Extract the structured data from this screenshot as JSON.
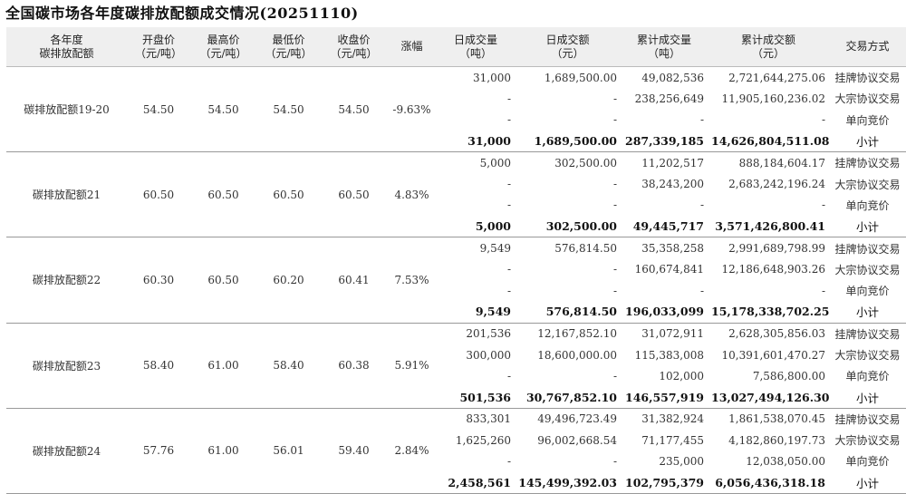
{
  "title": "全国碳市场各年度碳排放配额成交情况(20251110)",
  "headers": [
    "各年度\n碳排放配额",
    "开盘价\n（元/吨）",
    "最高价\n（元/吨）",
    "最低价\n（元/吨）",
    "收盘价\n（元/吨）",
    "涨幅",
    "日成交量\n（吨）",
    "日成交额\n（元）",
    "累计成交量\n（吨）",
    "累计成交额\n（元）",
    "交易方式"
  ],
  "groups": [
    {
      "name": "碳排放配额19-20",
      "open": "54.50",
      "high": "54.50",
      "low": "54.50",
      "close": "54.50",
      "change": "-9.63%",
      "rows": [
        {
          "vol": "31,000",
          "amt": "1,689,500.00",
          "cum_vol": "49,082,536",
          "cum_amt": "2,721,644,275.06",
          "type": "挂牌协议交易"
        },
        {
          "vol": "-",
          "amt": "-",
          "cum_vol": "238,256,649",
          "cum_amt": "11,905,160,236.02",
          "type": "大宗协议交易"
        },
        {
          "vol": "-",
          "amt": "-",
          "cum_vol": "-",
          "cum_amt": "-",
          "type": "单向竞价"
        },
        {
          "vol": "31,000",
          "amt": "1,689,500.00",
          "cum_vol": "287,339,185",
          "cum_amt": "14,626,804,511.08",
          "type": "小计"
        }
      ]
    },
    {
      "name": "碳排放配额21",
      "open": "60.50",
      "high": "60.50",
      "low": "60.50",
      "close": "60.50",
      "change": "4.83%",
      "rows": [
        {
          "vol": "5,000",
          "amt": "302,500.00",
          "cum_vol": "11,202,517",
          "cum_amt": "888,184,604.17",
          "type": "挂牌协议交易"
        },
        {
          "vol": "-",
          "amt": "-",
          "cum_vol": "38,243,200",
          "cum_amt": "2,683,242,196.24",
          "type": "大宗协议交易"
        },
        {
          "vol": "-",
          "amt": "-",
          "cum_vol": "-",
          "cum_amt": "-",
          "type": "单向竞价"
        },
        {
          "vol": "5,000",
          "amt": "302,500.00",
          "cum_vol": "49,445,717",
          "cum_amt": "3,571,426,800.41",
          "type": "小计"
        }
      ]
    },
    {
      "name": "碳排放配额22",
      "open": "60.30",
      "high": "60.50",
      "low": "60.20",
      "close": "60.41",
      "change": "7.53%",
      "rows": [
        {
          "vol": "9,549",
          "amt": "576,814.50",
          "cum_vol": "35,358,258",
          "cum_amt": "2,991,689,798.99",
          "type": "挂牌协议交易"
        },
        {
          "vol": "-",
          "amt": "-",
          "cum_vol": "160,674,841",
          "cum_amt": "12,186,648,903.26",
          "type": "大宗协议交易"
        },
        {
          "vol": "-",
          "amt": "-",
          "cum_vol": "-",
          "cum_amt": "-",
          "type": "单向竞价"
        },
        {
          "vol": "9,549",
          "amt": "576,814.50",
          "cum_vol": "196,033,099",
          "cum_amt": "15,178,338,702.25",
          "type": "小计"
        }
      ]
    },
    {
      "name": "碳排放配额23",
      "open": "58.40",
      "high": "61.00",
      "low": "58.40",
      "close": "60.38",
      "change": "5.91%",
      "rows": [
        {
          "vol": "201,536",
          "amt": "12,167,852.10",
          "cum_vol": "31,072,911",
          "cum_amt": "2,628,305,856.03",
          "type": "挂牌协议交易"
        },
        {
          "vol": "300,000",
          "amt": "18,600,000.00",
          "cum_vol": "115,383,008",
          "cum_amt": "10,391,601,470.27",
          "type": "大宗协议交易"
        },
        {
          "vol": "-",
          "amt": "-",
          "cum_vol": "102,000",
          "cum_amt": "7,586,800.00",
          "type": "单向竞价"
        },
        {
          "vol": "501,536",
          "amt": "30,767,852.10",
          "cum_vol": "146,557,919",
          "cum_amt": "13,027,494,126.30",
          "type": "小计"
        }
      ]
    },
    {
      "name": "碳排放配额24",
      "open": "57.76",
      "high": "61.00",
      "low": "56.01",
      "close": "59.40",
      "change": "2.84%",
      "rows": [
        {
          "vol": "833,301",
          "amt": "49,496,723.49",
          "cum_vol": "31,382,924",
          "cum_amt": "1,861,538,070.45",
          "type": "挂牌协议交易"
        },
        {
          "vol": "1,625,260",
          "amt": "96,002,668.54",
          "cum_vol": "71,177,455",
          "cum_amt": "4,182,860,197.73",
          "type": "大宗协议交易"
        },
        {
          "vol": "-",
          "amt": "-",
          "cum_vol": "235,000",
          "cum_amt": "12,038,050.00",
          "type": "单向竞价"
        },
        {
          "vol": "2,458,561",
          "amt": "145,499,392.03",
          "cum_vol": "102,795,379",
          "cum_amt": "6,056,436,318.18",
          "type": "小计"
        }
      ]
    }
  ]
}
